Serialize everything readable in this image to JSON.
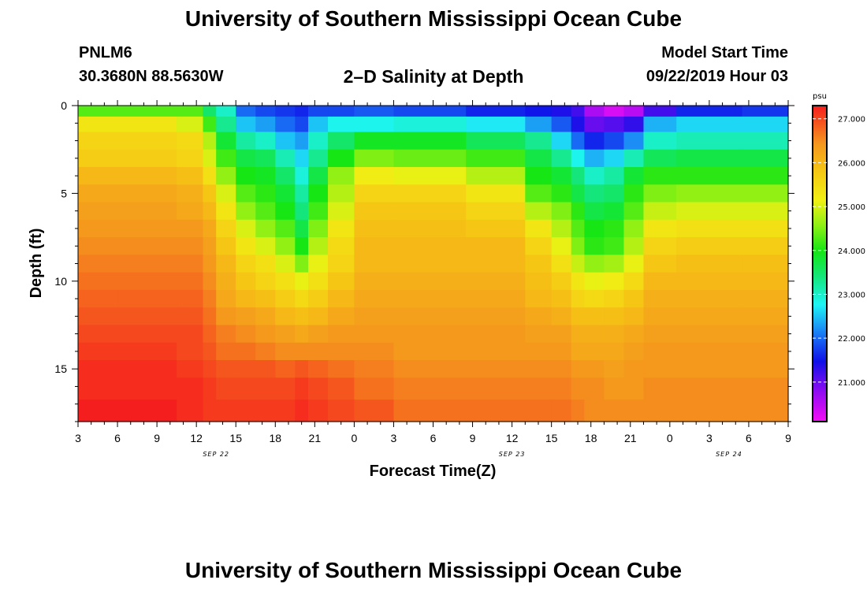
{
  "header": {
    "title": "University of Southern Mississippi Ocean Cube",
    "station": "PNLM6",
    "coordinates": "30.3680N 88.5630W",
    "subtitle": "2–D Salinity at Depth",
    "model_start_label": "Model Start Time",
    "model_start_value": "09/22/2019 Hour 03"
  },
  "footer": {
    "title": "University of Southern Mississippi Ocean Cube"
  },
  "chart_data": {
    "type": "heatmap",
    "title": "2–D Salinity at Depth",
    "xlabel": "Forecast Time(Z)",
    "ylabel": "Depth (ft)",
    "x_range_hours": [
      0,
      54
    ],
    "x_ticks": [
      {
        "h": 0,
        "label": "3"
      },
      {
        "h": 3,
        "label": "6"
      },
      {
        "h": 6,
        "label": "9"
      },
      {
        "h": 9,
        "label": "12"
      },
      {
        "h": 12,
        "label": "15"
      },
      {
        "h": 15,
        "label": "18"
      },
      {
        "h": 18,
        "label": "21"
      },
      {
        "h": 21,
        "label": "0"
      },
      {
        "h": 24,
        "label": "3"
      },
      {
        "h": 27,
        "label": "6"
      },
      {
        "h": 30,
        "label": "9"
      },
      {
        "h": 33,
        "label": "12"
      },
      {
        "h": 36,
        "label": "15"
      },
      {
        "h": 39,
        "label": "18"
      },
      {
        "h": 42,
        "label": "21"
      },
      {
        "h": 45,
        "label": "0"
      },
      {
        "h": 48,
        "label": "3"
      },
      {
        "h": 51,
        "label": "6"
      },
      {
        "h": 54,
        "label": "9"
      }
    ],
    "date_labels": [
      {
        "h": 10.5,
        "label": "SEP 22"
      },
      {
        "h": 33,
        "label": "SEP 23"
      },
      {
        "h": 49.5,
        "label": "SEP 24"
      }
    ],
    "y_range_ft": [
      0,
      18
    ],
    "y_ticks": [
      0,
      5,
      10,
      15
    ],
    "colorbar": {
      "unit": "psu",
      "range": [
        20.1,
        27.3
      ],
      "ticks": [
        "21.000",
        "22.000",
        "23.000",
        "24.000",
        "25.000",
        "26.000",
        "27.000"
      ],
      "tick_values": [
        21,
        22,
        23,
        24,
        25,
        26,
        27
      ]
    },
    "columns_hours": [
      0,
      6,
      9,
      10,
      11,
      13,
      14,
      16,
      17,
      18,
      20,
      22,
      26,
      33,
      35,
      37,
      38,
      39,
      41,
      42,
      44,
      47,
      54
    ],
    "depths_ft": [
      0.25,
      1,
      2,
      3,
      4,
      5,
      6,
      7,
      8,
      9,
      10,
      11,
      12,
      13,
      14,
      15,
      16,
      17.5
    ],
    "salinity_psu": [
      [
        24.3,
        24.3,
        24.3,
        23.5,
        23.0,
        22.0,
        21.8,
        21.7,
        21.6,
        21.8,
        21.8,
        21.9,
        21.8,
        21.6,
        21.5,
        21.4,
        21.2,
        20.6,
        20.3,
        20.5,
        21.2,
        21.6,
        21.7
      ],
      [
        25.3,
        25.3,
        25.0,
        24.2,
        23.3,
        22.5,
        22.3,
        22.0,
        21.8,
        22.5,
        22.8,
        22.8,
        22.9,
        22.7,
        22.3,
        21.9,
        21.4,
        21.0,
        21.1,
        21.3,
        22.4,
        22.6,
        22.6
      ],
      [
        25.6,
        25.6,
        25.5,
        24.8,
        23.8,
        23.2,
        23.0,
        22.5,
        22.3,
        23.0,
        23.5,
        23.9,
        23.9,
        23.6,
        23.3,
        22.6,
        22.0,
        21.6,
        21.8,
        22.2,
        23.0,
        23.1,
        23.1
      ],
      [
        25.7,
        25.7,
        25.6,
        25.0,
        24.2,
        23.7,
        23.6,
        23.1,
        22.6,
        23.3,
        24.0,
        24.5,
        24.4,
        24.2,
        23.7,
        23.3,
        22.8,
        22.4,
        22.6,
        23.1,
        23.6,
        23.7,
        23.7
      ],
      [
        26.0,
        26.0,
        25.9,
        25.4,
        24.6,
        24.0,
        23.9,
        23.5,
        22.9,
        23.7,
        24.6,
        25.2,
        25.1,
        24.8,
        24.0,
        23.8,
        23.4,
        23.0,
        23.2,
        23.8,
        24.1,
        24.1,
        24.1
      ],
      [
        26.2,
        26.2,
        26.1,
        25.8,
        25.0,
        24.3,
        24.1,
        23.8,
        23.2,
        24.0,
        24.8,
        25.6,
        25.6,
        25.3,
        24.3,
        24.1,
        23.7,
        23.4,
        23.5,
        24.1,
        24.5,
        24.6,
        24.6
      ],
      [
        26.3,
        26.3,
        26.2,
        26.0,
        25.3,
        24.6,
        24.3,
        24.0,
        23.4,
        24.2,
        25.0,
        25.8,
        25.8,
        25.6,
        24.8,
        24.5,
        24.1,
        23.7,
        23.8,
        24.3,
        24.9,
        25.0,
        25.0
      ],
      [
        26.4,
        26.4,
        26.4,
        26.2,
        25.6,
        25.0,
        24.6,
        24.3,
        23.7,
        24.5,
        25.3,
        25.9,
        25.9,
        25.8,
        25.3,
        24.8,
        24.3,
        24.0,
        24.1,
        24.6,
        25.3,
        25.4,
        25.4
      ],
      [
        26.5,
        26.5,
        26.5,
        26.3,
        25.8,
        25.3,
        25.0,
        24.6,
        24.0,
        24.8,
        25.5,
        26.0,
        26.0,
        26.0,
        25.6,
        25.1,
        24.5,
        24.1,
        24.2,
        24.8,
        25.6,
        25.7,
        25.7
      ],
      [
        26.6,
        26.6,
        26.6,
        26.4,
        26.0,
        25.6,
        25.4,
        25.0,
        24.5,
        25.1,
        25.6,
        26.0,
        26.0,
        26.0,
        25.8,
        25.4,
        24.9,
        24.6,
        24.7,
        25.1,
        25.8,
        25.9,
        25.9
      ],
      [
        26.7,
        26.7,
        26.7,
        26.5,
        26.1,
        25.8,
        25.6,
        25.4,
        25.1,
        25.4,
        25.8,
        26.1,
        26.1,
        26.1,
        25.9,
        25.7,
        25.3,
        25.1,
        25.2,
        25.5,
        26.0,
        26.0,
        26.0
      ],
      [
        26.8,
        26.8,
        26.8,
        26.6,
        26.2,
        26.0,
        25.9,
        25.7,
        25.5,
        25.7,
        26.0,
        26.2,
        26.2,
        26.2,
        26.0,
        25.9,
        25.6,
        25.5,
        25.6,
        25.8,
        26.1,
        26.1,
        26.1
      ],
      [
        26.9,
        26.9,
        26.9,
        26.7,
        26.4,
        26.3,
        26.2,
        26.0,
        25.9,
        26.0,
        26.2,
        26.3,
        26.3,
        26.3,
        26.2,
        26.1,
        25.9,
        25.9,
        25.9,
        26.0,
        26.2,
        26.2,
        26.2
      ],
      [
        27.0,
        27.0,
        27.0,
        26.8,
        26.6,
        26.5,
        26.4,
        26.3,
        26.2,
        26.3,
        26.4,
        26.4,
        26.4,
        26.4,
        26.3,
        26.3,
        26.1,
        26.1,
        26.1,
        26.2,
        26.3,
        26.3,
        26.3
      ],
      [
        27.1,
        27.1,
        27.0,
        26.9,
        26.7,
        26.7,
        26.6,
        26.5,
        26.5,
        26.5,
        26.5,
        26.5,
        26.4,
        26.4,
        26.4,
        26.4,
        26.2,
        26.2,
        26.2,
        26.3,
        26.4,
        26.4,
        26.4
      ],
      [
        27.2,
        27.2,
        27.1,
        27.0,
        26.9,
        26.9,
        26.9,
        26.8,
        26.9,
        26.8,
        26.7,
        26.6,
        26.5,
        26.5,
        26.5,
        26.5,
        26.4,
        26.4,
        26.3,
        26.4,
        26.4,
        26.4,
        26.4
      ],
      [
        27.2,
        27.2,
        27.2,
        27.1,
        27.0,
        27.0,
        27.0,
        27.0,
        27.1,
        27.0,
        26.9,
        26.7,
        26.6,
        26.6,
        26.6,
        26.6,
        26.5,
        26.5,
        26.4,
        26.4,
        26.5,
        26.5,
        26.5
      ],
      [
        27.3,
        27.3,
        27.2,
        27.1,
        27.1,
        27.1,
        27.1,
        27.1,
        27.2,
        27.1,
        27.0,
        26.9,
        26.7,
        26.7,
        26.7,
        26.7,
        26.6,
        26.5,
        26.5,
        26.5,
        26.5,
        26.5,
        26.5
      ]
    ]
  }
}
